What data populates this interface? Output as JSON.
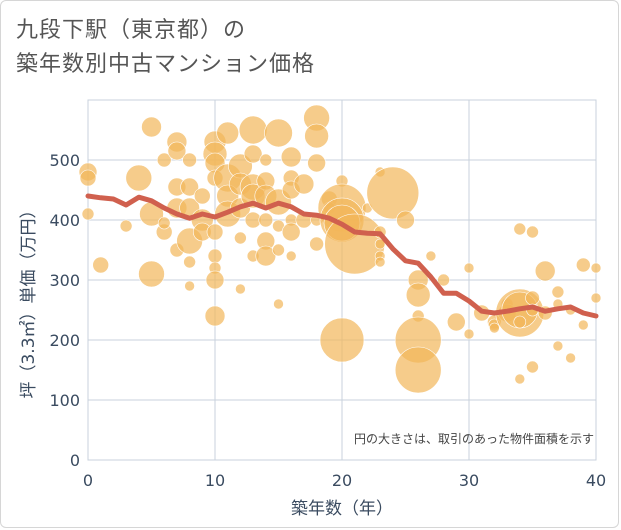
{
  "title_line1": "九段下駅（東京都）の",
  "title_line2": "築年数別中古マンション価格",
  "chart_data": {
    "type": "scatter",
    "xlabel": "築年数（年）",
    "ylabel": "坪（3.3㎡）単価（万円）",
    "xlim": [
      0,
      40
    ],
    "ylim": [
      0,
      560
    ],
    "xticks": [
      "0",
      "10",
      "20",
      "30",
      "40"
    ],
    "yticks": [
      "0",
      "100",
      "200",
      "300",
      "400",
      "500"
    ],
    "note": "円の大きさは、取引のあった物件面積を示す",
    "colors": {
      "bubble": "#f2b65a",
      "line": "#d0604e",
      "grid": "#c8d2dc"
    },
    "trend": {
      "x": [
        0,
        1,
        2,
        3,
        4,
        5,
        6,
        7,
        8,
        9,
        10,
        11,
        12,
        13,
        14,
        15,
        16,
        17,
        18,
        19,
        20,
        21,
        22,
        23,
        24,
        25,
        26,
        27,
        28,
        29,
        30,
        31,
        32,
        33,
        34,
        35,
        36,
        37,
        38,
        39,
        40
      ],
      "y": [
        440,
        437,
        435,
        425,
        438,
        432,
        420,
        410,
        403,
        410,
        405,
        413,
        422,
        428,
        420,
        428,
        422,
        410,
        408,
        403,
        393,
        380,
        378,
        377,
        352,
        332,
        328,
        305,
        278,
        278,
        265,
        248,
        245,
        248,
        252,
        255,
        248,
        252,
        255,
        245,
        240
      ]
    },
    "points": [
      {
        "x": 0,
        "y": 480,
        "s": 9
      },
      {
        "x": 0,
        "y": 470,
        "s": 8
      },
      {
        "x": 0,
        "y": 410,
        "s": 6
      },
      {
        "x": 1,
        "y": 325,
        "s": 8
      },
      {
        "x": 3,
        "y": 390,
        "s": 6
      },
      {
        "x": 4,
        "y": 470,
        "s": 13
      },
      {
        "x": 5,
        "y": 555,
        "s": 10
      },
      {
        "x": 5,
        "y": 410,
        "s": 12
      },
      {
        "x": 5,
        "y": 310,
        "s": 13
      },
      {
        "x": 6,
        "y": 380,
        "s": 8
      },
      {
        "x": 6,
        "y": 395,
        "s": 6
      },
      {
        "x": 6,
        "y": 500,
        "s": 7
      },
      {
        "x": 7,
        "y": 530,
        "s": 10
      },
      {
        "x": 7,
        "y": 515,
        "s": 9
      },
      {
        "x": 7,
        "y": 455,
        "s": 9
      },
      {
        "x": 7,
        "y": 420,
        "s": 10
      },
      {
        "x": 7,
        "y": 350,
        "s": 7
      },
      {
        "x": 8,
        "y": 455,
        "s": 9
      },
      {
        "x": 8,
        "y": 420,
        "s": 10
      },
      {
        "x": 8,
        "y": 365,
        "s": 13
      },
      {
        "x": 8,
        "y": 330,
        "s": 6
      },
      {
        "x": 8,
        "y": 290,
        "s": 5
      },
      {
        "x": 8,
        "y": 500,
        "s": 7
      },
      {
        "x": 9,
        "y": 440,
        "s": 8
      },
      {
        "x": 9,
        "y": 400,
        "s": 11
      },
      {
        "x": 9,
        "y": 380,
        "s": 9
      },
      {
        "x": 10,
        "y": 530,
        "s": 11
      },
      {
        "x": 10,
        "y": 510,
        "s": 12
      },
      {
        "x": 10,
        "y": 495,
        "s": 10
      },
      {
        "x": 10,
        "y": 470,
        "s": 8
      },
      {
        "x": 10,
        "y": 380,
        "s": 8
      },
      {
        "x": 10,
        "y": 340,
        "s": 7
      },
      {
        "x": 10,
        "y": 320,
        "s": 6
      },
      {
        "x": 10,
        "y": 300,
        "s": 9
      },
      {
        "x": 10,
        "y": 240,
        "s": 10
      },
      {
        "x": 11,
        "y": 545,
        "s": 11
      },
      {
        "x": 11,
        "y": 470,
        "s": 14
      },
      {
        "x": 11,
        "y": 440,
        "s": 11
      },
      {
        "x": 11,
        "y": 410,
        "s": 13
      },
      {
        "x": 12,
        "y": 490,
        "s": 12
      },
      {
        "x": 12,
        "y": 460,
        "s": 11
      },
      {
        "x": 12,
        "y": 420,
        "s": 10
      },
      {
        "x": 12,
        "y": 370,
        "s": 6
      },
      {
        "x": 12,
        "y": 285,
        "s": 5
      },
      {
        "x": 13,
        "y": 550,
        "s": 14
      },
      {
        "x": 13,
        "y": 510,
        "s": 9
      },
      {
        "x": 13,
        "y": 455,
        "s": 13
      },
      {
        "x": 13,
        "y": 440,
        "s": 12
      },
      {
        "x": 13,
        "y": 400,
        "s": 8
      },
      {
        "x": 13,
        "y": 340,
        "s": 6
      },
      {
        "x": 14,
        "y": 465,
        "s": 9
      },
      {
        "x": 14,
        "y": 440,
        "s": 11
      },
      {
        "x": 14,
        "y": 400,
        "s": 7
      },
      {
        "x": 14,
        "y": 365,
        "s": 9
      },
      {
        "x": 14,
        "y": 340,
        "s": 10
      },
      {
        "x": 14,
        "y": 500,
        "s": 6
      },
      {
        "x": 15,
        "y": 545,
        "s": 14
      },
      {
        "x": 15,
        "y": 430,
        "s": 13
      },
      {
        "x": 15,
        "y": 390,
        "s": 6
      },
      {
        "x": 15,
        "y": 350,
        "s": 6
      },
      {
        "x": 15,
        "y": 260,
        "s": 5
      },
      {
        "x": 16,
        "y": 505,
        "s": 10
      },
      {
        "x": 16,
        "y": 470,
        "s": 8
      },
      {
        "x": 16,
        "y": 450,
        "s": 9
      },
      {
        "x": 16,
        "y": 400,
        "s": 6
      },
      {
        "x": 16,
        "y": 380,
        "s": 9
      },
      {
        "x": 16,
        "y": 340,
        "s": 5
      },
      {
        "x": 17,
        "y": 460,
        "s": 10
      },
      {
        "x": 17,
        "y": 400,
        "s": 8
      },
      {
        "x": 18,
        "y": 570,
        "s": 13
      },
      {
        "x": 18,
        "y": 540,
        "s": 12
      },
      {
        "x": 18,
        "y": 495,
        "s": 9
      },
      {
        "x": 18,
        "y": 400,
        "s": 6
      },
      {
        "x": 18,
        "y": 360,
        "s": 7
      },
      {
        "x": 19,
        "y": 435,
        "s": 8
      },
      {
        "x": 19,
        "y": 420,
        "s": 6
      },
      {
        "x": 20,
        "y": 465,
        "s": 6
      },
      {
        "x": 20,
        "y": 420,
        "s": 24
      },
      {
        "x": 20,
        "y": 400,
        "s": 22
      },
      {
        "x": 20,
        "y": 395,
        "s": 18
      },
      {
        "x": 20,
        "y": 200,
        "s": 22
      },
      {
        "x": 21,
        "y": 360,
        "s": 30
      },
      {
        "x": 22,
        "y": 420,
        "s": 5
      },
      {
        "x": 23,
        "y": 480,
        "s": 5
      },
      {
        "x": 23,
        "y": 380,
        "s": 6
      },
      {
        "x": 23,
        "y": 360,
        "s": 5
      },
      {
        "x": 23,
        "y": 340,
        "s": 5
      },
      {
        "x": 23,
        "y": 330,
        "s": 5
      },
      {
        "x": 24,
        "y": 445,
        "s": 26
      },
      {
        "x": 25,
        "y": 400,
        "s": 9
      },
      {
        "x": 26,
        "y": 300,
        "s": 10
      },
      {
        "x": 26,
        "y": 275,
        "s": 12
      },
      {
        "x": 26,
        "y": 240,
        "s": 6
      },
      {
        "x": 26,
        "y": 200,
        "s": 23
      },
      {
        "x": 26,
        "y": 150,
        "s": 23
      },
      {
        "x": 27,
        "y": 340,
        "s": 5
      },
      {
        "x": 28,
        "y": 300,
        "s": 6
      },
      {
        "x": 29,
        "y": 230,
        "s": 9
      },
      {
        "x": 30,
        "y": 320,
        "s": 5
      },
      {
        "x": 30,
        "y": 210,
        "s": 5
      },
      {
        "x": 31,
        "y": 245,
        "s": 8
      },
      {
        "x": 32,
        "y": 230,
        "s": 7
      },
      {
        "x": 32,
        "y": 225,
        "s": 6
      },
      {
        "x": 32,
        "y": 220,
        "s": 5
      },
      {
        "x": 33,
        "y": 260,
        "s": 6
      },
      {
        "x": 33,
        "y": 245,
        "s": 9
      },
      {
        "x": 34,
        "y": 245,
        "s": 24
      },
      {
        "x": 34,
        "y": 250,
        "s": 18
      },
      {
        "x": 34,
        "y": 385,
        "s": 6
      },
      {
        "x": 34,
        "y": 230,
        "s": 6
      },
      {
        "x": 34,
        "y": 135,
        "s": 5
      },
      {
        "x": 35,
        "y": 380,
        "s": 6
      },
      {
        "x": 35,
        "y": 270,
        "s": 7
      },
      {
        "x": 35,
        "y": 250,
        "s": 6
      },
      {
        "x": 35,
        "y": 155,
        "s": 6
      },
      {
        "x": 36,
        "y": 315,
        "s": 10
      },
      {
        "x": 36,
        "y": 245,
        "s": 7
      },
      {
        "x": 37,
        "y": 260,
        "s": 5
      },
      {
        "x": 37,
        "y": 280,
        "s": 6
      },
      {
        "x": 37,
        "y": 190,
        "s": 5
      },
      {
        "x": 38,
        "y": 250,
        "s": 5
      },
      {
        "x": 38,
        "y": 170,
        "s": 5
      },
      {
        "x": 39,
        "y": 325,
        "s": 7
      },
      {
        "x": 39,
        "y": 225,
        "s": 5
      },
      {
        "x": 40,
        "y": 320,
        "s": 5
      },
      {
        "x": 40,
        "y": 270,
        "s": 5
      }
    ]
  }
}
